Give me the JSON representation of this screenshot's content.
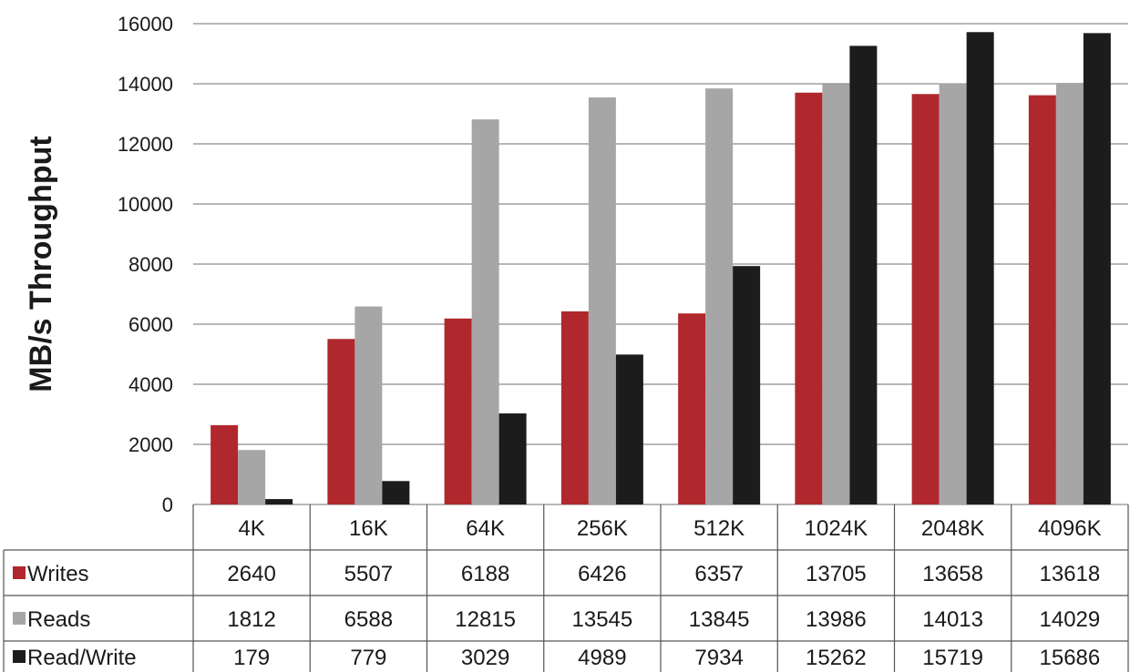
{
  "chart_data": {
    "type": "bar",
    "title": "",
    "xlabel": "",
    "ylabel": "MB/s Throughput",
    "ylim": [
      0,
      16000
    ],
    "yticks": [
      0,
      2000,
      4000,
      6000,
      8000,
      10000,
      12000,
      14000,
      16000
    ],
    "grid": true,
    "legend": "data-table",
    "categories": [
      "4K",
      "16K",
      "64K",
      "256K",
      "512K",
      "1024K",
      "2048K",
      "4096K"
    ],
    "series": [
      {
        "name": "Writes",
        "color": "#b0282d",
        "values": [
          2640,
          5507,
          6188,
          6426,
          6357,
          13705,
          13658,
          13618
        ]
      },
      {
        "name": "Reads",
        "color": "#a6a6a6",
        "values": [
          1812,
          6588,
          12815,
          13545,
          13845,
          13986,
          14013,
          14029
        ]
      },
      {
        "name": "Read/Write",
        "color": "#1c1c1c",
        "values": [
          179,
          779,
          3029,
          4989,
          7934,
          15262,
          15719,
          15686
        ]
      }
    ]
  }
}
